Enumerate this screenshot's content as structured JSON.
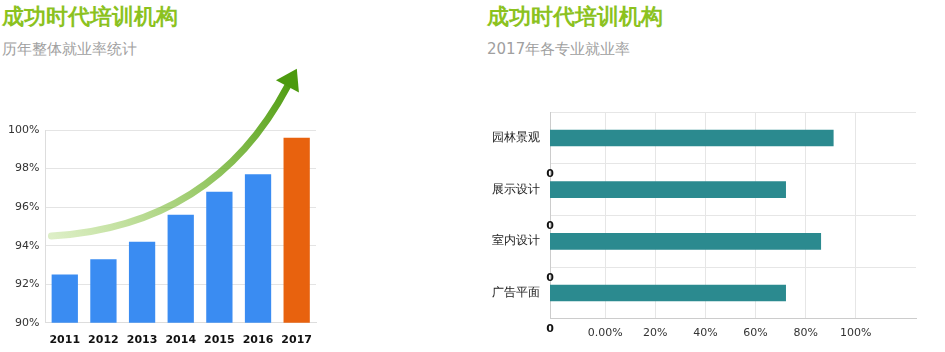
{
  "chart_data": [
    {
      "type": "bar",
      "title": "成功时代培训机构",
      "subtitle": "历年整体就业率统计",
      "categories": [
        "2011",
        "2012",
        "2013",
        "2014",
        "2015",
        "2016",
        "2017"
      ],
      "values": [
        92.5,
        93.3,
        94.2,
        95.6,
        96.8,
        97.7,
        99.6
      ],
      "colors": [
        "#3a8cf2",
        "#3a8cf2",
        "#3a8cf2",
        "#3a8cf2",
        "#3a8cf2",
        "#3a8cf2",
        "#e8620e"
      ],
      "ylim": [
        90,
        100
      ],
      "yticks": [
        {
          "value": 90,
          "label": "90%"
        },
        {
          "value": 92,
          "label": "92%"
        },
        {
          "value": 94,
          "label": "94%"
        },
        {
          "value": 96,
          "label": "96%"
        },
        {
          "value": 98,
          "label": "98%"
        },
        {
          "value": 100,
          "label": "100%"
        }
      ],
      "grid": true
    },
    {
      "type": "bar",
      "orientation": "horizontal",
      "title": "成功时代培训机构",
      "subtitle": "2017年各专业就业率",
      "categories": [
        "园林景观",
        "展示设计",
        "室内设计",
        "广告平面"
      ],
      "values": [
        91,
        72,
        86,
        72
      ],
      "base_labels": [
        "0",
        "0",
        "0",
        "0"
      ],
      "color": "#2b8a8f",
      "xlim": [
        -22,
        124
      ],
      "xticks": [
        {
          "value": 0,
          "label": "0.00%"
        },
        {
          "value": 20,
          "label": "20%"
        },
        {
          "value": 40,
          "label": "40%"
        },
        {
          "value": 60,
          "label": "60%"
        },
        {
          "value": 80,
          "label": "80%"
        },
        {
          "value": 100,
          "label": "100%"
        }
      ],
      "grid": true
    }
  ]
}
